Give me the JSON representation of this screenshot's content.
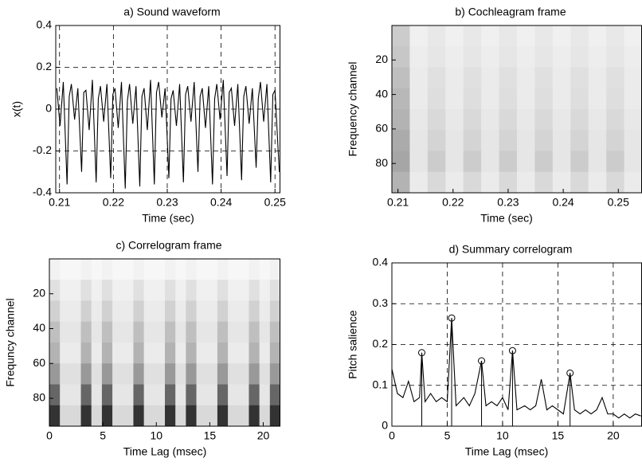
{
  "chart_data": [
    {
      "type": "line",
      "title": "a) Sound waveform",
      "x_label": "Time (sec)",
      "y_label": "x(t)",
      "xlim": [
        0.2093,
        0.251
      ],
      "ylim": [
        -0.4,
        0.4
      ],
      "xticks": [
        0.21,
        0.22,
        0.23,
        0.24,
        0.25
      ],
      "yticks": [
        -0.4,
        -0.2,
        0,
        0.2,
        0.4
      ],
      "grid": true,
      "color": "#000000",
      "x": [
        0.2095,
        0.2101,
        0.2107,
        0.2114,
        0.2118,
        0.2122,
        0.2128,
        0.2134,
        0.2141,
        0.2145,
        0.2149,
        0.2155,
        0.2161,
        0.2168,
        0.2172,
        0.2176,
        0.2182,
        0.2188,
        0.2195,
        0.2199,
        0.2203,
        0.2209,
        0.2215,
        0.2222,
        0.2226,
        0.223,
        0.2236,
        0.2242,
        0.2249,
        0.2253,
        0.2257,
        0.2263,
        0.2269,
        0.2276,
        0.228,
        0.2284,
        0.229,
        0.2296,
        0.2303,
        0.2307,
        0.2311,
        0.2317,
        0.2323,
        0.233,
        0.2334,
        0.2338,
        0.2344,
        0.235,
        0.2357,
        0.2361,
        0.2365,
        0.2371,
        0.2377,
        0.2384,
        0.2388,
        0.2392,
        0.2398,
        0.2404,
        0.2411,
        0.2415,
        0.2419,
        0.2425,
        0.2431,
        0.2438,
        0.2442,
        0.2446,
        0.2452,
        0.2458,
        0.2465,
        0.2469,
        0.2473,
        0.2479,
        0.2485,
        0.2492,
        0.2496,
        0.25,
        0.2508
      ],
      "values": [
        0.1,
        -0.08,
        0.13,
        -0.36,
        0.06,
        0.12,
        -0.05,
        0.1,
        -0.3,
        0.08,
        0.09,
        -0.1,
        0.14,
        -0.35,
        0.05,
        0.11,
        -0.06,
        0.12,
        -0.33,
        0.07,
        0.1,
        -0.09,
        0.13,
        -0.38,
        0.04,
        0.12,
        -0.07,
        0.11,
        -0.37,
        0.06,
        0.1,
        -0.1,
        0.14,
        -0.36,
        0.08,
        0.13,
        -0.04,
        0.1,
        -0.33,
        0.05,
        0.09,
        -0.08,
        0.12,
        -0.35,
        0.07,
        0.11,
        -0.06,
        0.13,
        -0.3,
        0.06,
        0.1,
        -0.09,
        0.11,
        -0.36,
        0.05,
        0.12,
        -0.05,
        0.14,
        -0.32,
        0.08,
        0.1,
        -0.08,
        0.12,
        -0.34,
        0.06,
        0.11,
        -0.07,
        0.1,
        -0.28,
        0.05,
        0.13,
        -0.06,
        0.12,
        -0.35,
        0.07,
        0.09,
        -0.3
      ]
    },
    {
      "type": "heatmap",
      "title": "b) Cochleagram frame",
      "x_label": "Time (sec)",
      "y_label": "Frequency channel",
      "xlim": [
        0.2089,
        0.2543
      ],
      "ylim": [
        0,
        97
      ],
      "y_reversed": true,
      "xticks": [
        0.21,
        0.22,
        0.23,
        0.24,
        0.25
      ],
      "yticks": [
        20,
        40,
        60,
        80
      ],
      "z": [
        [
          0.2,
          0.06,
          0.09,
          0.06,
          0.09,
          0.06,
          0.09,
          0.06,
          0.09,
          0.06,
          0.09,
          0.06,
          0.09,
          0.06
        ],
        [
          0.22,
          0.07,
          0.1,
          0.07,
          0.1,
          0.07,
          0.1,
          0.07,
          0.1,
          0.07,
          0.1,
          0.07,
          0.1,
          0.07
        ],
        [
          0.25,
          0.08,
          0.12,
          0.08,
          0.12,
          0.08,
          0.12,
          0.08,
          0.12,
          0.08,
          0.12,
          0.08,
          0.12,
          0.08
        ],
        [
          0.28,
          0.08,
          0.13,
          0.08,
          0.13,
          0.08,
          0.13,
          0.08,
          0.13,
          0.08,
          0.13,
          0.08,
          0.13,
          0.08
        ],
        [
          0.3,
          0.09,
          0.15,
          0.09,
          0.15,
          0.09,
          0.15,
          0.09,
          0.15,
          0.09,
          0.15,
          0.09,
          0.15,
          0.09
        ],
        [
          0.33,
          0.1,
          0.17,
          0.1,
          0.17,
          0.1,
          0.17,
          0.1,
          0.17,
          0.1,
          0.17,
          0.1,
          0.17,
          0.1
        ],
        [
          0.35,
          0.1,
          0.2,
          0.1,
          0.2,
          0.1,
          0.2,
          0.1,
          0.2,
          0.1,
          0.2,
          0.1,
          0.2,
          0.1
        ],
        [
          0.3,
          0.08,
          0.15,
          0.08,
          0.15,
          0.08,
          0.15,
          0.08,
          0.15,
          0.08,
          0.15,
          0.08,
          0.15,
          0.08
        ]
      ]
    },
    {
      "type": "heatmap",
      "title": "c) Correlogram frame",
      "x_label": "Time Lag (msec)",
      "y_label": "Frequncy channel",
      "xlim": [
        0,
        21.6
      ],
      "ylim": [
        0,
        96
      ],
      "y_reversed": true,
      "xticks": [
        0,
        5,
        10,
        15,
        20
      ],
      "yticks": [
        20,
        40,
        60,
        80
      ],
      "z": [
        [
          0.05,
          0.03,
          0.03,
          0.05,
          0.03,
          0.05,
          0.03,
          0.03,
          0.05,
          0.03,
          0.03,
          0.05,
          0.03,
          0.05,
          0.03,
          0.03,
          0.05,
          0.03,
          0.03,
          0.05,
          0.03,
          0.05
        ],
        [
          0.12,
          0.06,
          0.06,
          0.12,
          0.06,
          0.12,
          0.06,
          0.06,
          0.12,
          0.06,
          0.06,
          0.12,
          0.06,
          0.12,
          0.06,
          0.06,
          0.12,
          0.06,
          0.06,
          0.12,
          0.06,
          0.12
        ],
        [
          0.18,
          0.08,
          0.08,
          0.18,
          0.08,
          0.18,
          0.08,
          0.08,
          0.18,
          0.08,
          0.08,
          0.18,
          0.08,
          0.18,
          0.08,
          0.08,
          0.18,
          0.08,
          0.08,
          0.18,
          0.08,
          0.18
        ],
        [
          0.25,
          0.1,
          0.1,
          0.25,
          0.1,
          0.25,
          0.1,
          0.1,
          0.25,
          0.1,
          0.1,
          0.25,
          0.1,
          0.25,
          0.1,
          0.1,
          0.25,
          0.1,
          0.1,
          0.25,
          0.1,
          0.25
        ],
        [
          0.3,
          0.08,
          0.08,
          0.3,
          0.08,
          0.3,
          0.08,
          0.08,
          0.3,
          0.08,
          0.08,
          0.3,
          0.08,
          0.3,
          0.08,
          0.08,
          0.3,
          0.08,
          0.08,
          0.3,
          0.08,
          0.3
        ],
        [
          0.4,
          0.12,
          0.12,
          0.4,
          0.12,
          0.4,
          0.12,
          0.12,
          0.4,
          0.12,
          0.12,
          0.4,
          0.12,
          0.4,
          0.12,
          0.12,
          0.4,
          0.12,
          0.12,
          0.4,
          0.12,
          0.4
        ],
        [
          0.6,
          0.1,
          0.1,
          0.6,
          0.1,
          0.6,
          0.1,
          0.1,
          0.6,
          0.1,
          0.1,
          0.6,
          0.1,
          0.6,
          0.1,
          0.1,
          0.6,
          0.1,
          0.1,
          0.6,
          0.1,
          0.6
        ],
        [
          0.8,
          0.15,
          0.15,
          0.8,
          0.15,
          0.8,
          0.15,
          0.15,
          0.8,
          0.15,
          0.15,
          0.8,
          0.15,
          0.8,
          0.15,
          0.15,
          0.8,
          0.15,
          0.15,
          0.8,
          0.15,
          0.8
        ]
      ]
    },
    {
      "type": "line",
      "title": "d) Summary correlogram",
      "x_label": "Time Lag (msec)",
      "y_label": "Pitch salience",
      "xlim": [
        0,
        22.6
      ],
      "ylim": [
        0,
        0.4
      ],
      "xticks": [
        0,
        5,
        10,
        15,
        20
      ],
      "yticks": [
        0,
        0.1,
        0.2,
        0.3,
        0.4
      ],
      "grid": true,
      "color": "#000000",
      "x": [
        0,
        0.5,
        1,
        1.5,
        2,
        2.5,
        2.7,
        3,
        3.5,
        4,
        4.5,
        5,
        5.4,
        5.8,
        6.5,
        7,
        7.5,
        8.1,
        8.5,
        9,
        9.5,
        10,
        10.5,
        10.9,
        11.3,
        12,
        12.5,
        13,
        13.5,
        14,
        14.5,
        15,
        15.5,
        16.1,
        16.5,
        17,
        17.5,
        18,
        18.5,
        19,
        19.5,
        20,
        20.5,
        21,
        21.5,
        22,
        22.5
      ],
      "values": [
        0.14,
        0.08,
        0.07,
        0.11,
        0.06,
        0.07,
        0.18,
        0.06,
        0.08,
        0.06,
        0.07,
        0.06,
        0.265,
        0.05,
        0.07,
        0.05,
        0.08,
        0.16,
        0.05,
        0.06,
        0.05,
        0.07,
        0.04,
        0.185,
        0.04,
        0.05,
        0.04,
        0.05,
        0.115,
        0.04,
        0.05,
        0.04,
        0.03,
        0.13,
        0.04,
        0.03,
        0.04,
        0.03,
        0.04,
        0.07,
        0.03,
        0.03,
        0.02,
        0.03,
        0.02,
        0.03,
        0.025
      ],
      "peaks": {
        "x": [
          2.7,
          5.4,
          8.1,
          10.9,
          16.1
        ],
        "values": [
          0.18,
          0.265,
          0.16,
          0.185,
          0.13
        ]
      }
    }
  ]
}
